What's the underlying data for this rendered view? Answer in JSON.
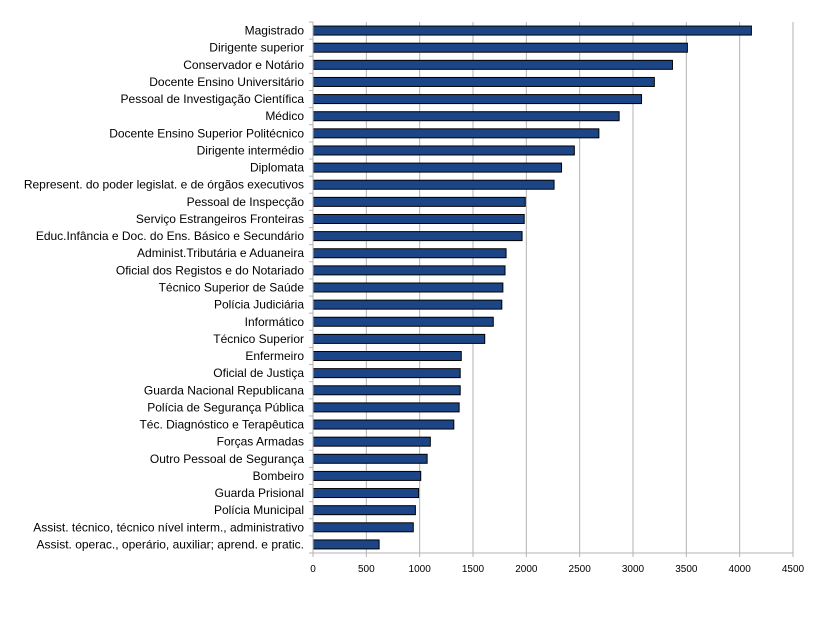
{
  "chart_data": {
    "type": "bar",
    "orientation": "horizontal",
    "categories": [
      "Magistrado",
      "Dirigente superior ",
      "Conservador e Notário",
      "Docente Ensino Universitário",
      "Pessoal de Investigação Científica",
      "Médico",
      "Docente Ensino Superior Politécnico",
      "Dirigente intermédio",
      "Diplomata",
      "Represent. do poder legislat. e de órgãos executivos",
      "Pessoal de Inspecção",
      "Serviço Estrangeiros Fronteiras",
      "Educ.Infância e Doc. do Ens. Básico e Secundário",
      "Administ.Tributária e Aduaneira",
      "Oficial dos Registos e do Notariado",
      "Técnico Superior de Saúde",
      "Polícia Judiciária",
      "Informático",
      "Técnico Superior",
      "Enfermeiro",
      "Oficial de Justiça",
      "Guarda Nacional Republicana",
      "Polícia de Segurança Pública",
      "Téc. Diagnóstico e Terapêutica",
      "Forças Armadas ",
      "Outro Pessoal de Segurança",
      "Bombeiro",
      "Guarda Prisional",
      "Polícia Municipal",
      "Assist. técnico, técnico nível interm., administrativo",
      "Assist. operac., operário, auxiliar; aprend. e pratic."
    ],
    "values": [
      4110,
      3510,
      3370,
      3200,
      3080,
      2870,
      2680,
      2450,
      2330,
      2260,
      1990,
      1980,
      1960,
      1810,
      1800,
      1780,
      1770,
      1690,
      1610,
      1390,
      1380,
      1380,
      1370,
      1320,
      1100,
      1070,
      1010,
      990,
      960,
      940,
      620
    ],
    "xlim": [
      0,
      4500
    ],
    "xticks": [
      "0",
      "500",
      "1000",
      "1500",
      "2000",
      "2500",
      "3000",
      "3500",
      "4000",
      "4500"
    ],
    "grid": "vertical",
    "legend": "none",
    "title": "",
    "xlabel": "",
    "ylabel": "",
    "colors": {
      "bar_fill": "#1c4587",
      "bar_stroke": "#000000",
      "grid": "#b3b3b3",
      "axis": "#b3b3b3"
    }
  }
}
